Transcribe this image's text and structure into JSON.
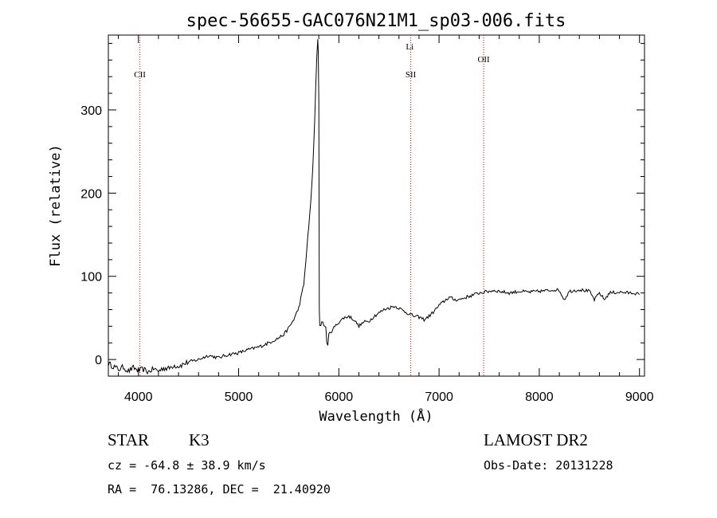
{
  "chart_data": {
    "type": "line",
    "title": "spec-56655-GAC076N21M1_sp03-006.fits",
    "xlabel": "Wavelength (Å)",
    "ylabel": "Flux (relative)",
    "xlim": [
      3700,
      9050
    ],
    "ylim": [
      -20,
      390
    ],
    "xticks": [
      4000,
      5000,
      6000,
      7000,
      8000,
      9000
    ],
    "yticks": [
      0,
      100,
      200,
      300
    ],
    "grid": false,
    "series": [
      {
        "x": [
          3700,
          3750,
          3800,
          3850,
          3900,
          3950,
          4000,
          4050,
          4100,
          4150,
          4200,
          4250,
          4300,
          4350,
          4400,
          4500,
          4600,
          4700,
          4800,
          4900,
          5000,
          5100,
          5200,
          5300,
          5400,
          5450,
          5500,
          5550,
          5600,
          5650,
          5700,
          5720,
          5740,
          5760,
          5770,
          5780,
          5790,
          5795,
          5800,
          5805,
          5810,
          5830,
          5850,
          5870,
          5880,
          5890,
          5900,
          5950,
          6000,
          6050,
          6100,
          6150,
          6200,
          6250,
          6300,
          6350,
          6400,
          6450,
          6500,
          6550,
          6600,
          6650,
          6700,
          6750,
          6800,
          6850,
          6900,
          6950,
          7000,
          7050,
          7100,
          7150,
          7200,
          7250,
          7300,
          7350,
          7400,
          7450,
          7500,
          7550,
          7600,
          7650,
          7700,
          7800,
          7900,
          8000,
          8100,
          8150,
          8200,
          8250,
          8300,
          8400,
          8500,
          8550,
          8600,
          8650,
          8700,
          8800,
          8900,
          8950,
          9000
        ],
        "y": [
          -5,
          -8,
          -12,
          -9,
          -14,
          -10,
          -13,
          -12,
          -15,
          -11,
          -14,
          -10,
          -11,
          -7,
          -8,
          -3,
          0,
          5,
          2,
          6,
          8,
          12,
          15,
          20,
          26,
          30,
          38,
          48,
          62,
          90,
          160,
          190,
          230,
          290,
          330,
          365,
          385,
          370,
          310,
          60,
          40,
          45,
          42,
          38,
          22,
          15,
          30,
          38,
          45,
          50,
          52,
          48,
          40,
          45,
          46,
          52,
          56,
          60,
          62,
          64,
          62,
          58,
          55,
          52,
          51,
          48,
          52,
          58,
          65,
          70,
          75,
          72,
          72,
          74,
          76,
          78,
          80,
          81,
          82,
          83,
          82,
          81,
          80,
          82,
          81,
          82,
          83,
          84,
          83,
          72,
          82,
          84,
          82,
          72,
          80,
          72,
          80,
          81,
          80,
          80,
          78
        ]
      }
    ],
    "lines": [
      {
        "label": "CII",
        "x": 4015
      },
      {
        "label": "Li",
        "x": 6707
      },
      {
        "label": "SII",
        "x": 6718
      },
      {
        "label": "OII",
        "x": 7445
      }
    ],
    "line_color": "#cc0000"
  },
  "info": {
    "class": "STAR",
    "subclass": "K3",
    "survey": "LAMOST DR2",
    "cz": "cz = -64.8 ± 38.9 km/s",
    "obsdate": "Obs-Date: 20131228",
    "radec": "RA =  76.13286, DEC =  21.40920"
  }
}
